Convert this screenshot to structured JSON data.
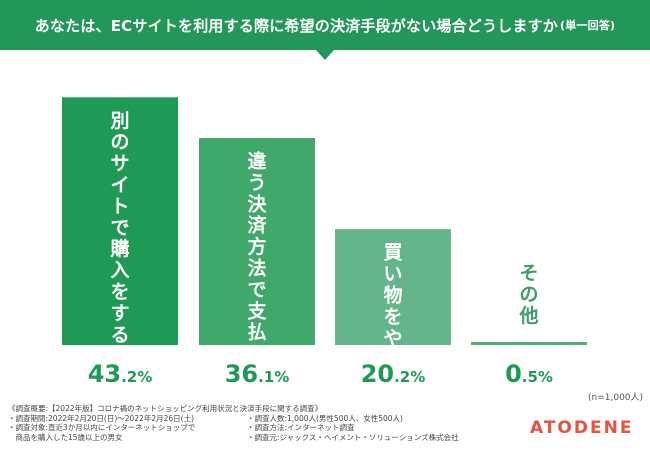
{
  "header": {
    "title": "あなたは、ECサイトを利用する際に希望の決済手段がない場合どうしますか",
    "subtitle": "(単一回答)"
  },
  "chart_data": {
    "type": "bar",
    "categories": [
      "別のサイトで購入をする",
      "違う決済方法で支払う",
      "買い物をやめる",
      "その他"
    ],
    "values": [
      43.2,
      36.1,
      20.2,
      0.5
    ],
    "value_labels": [
      {
        "int": "43",
        "dec": ".2%"
      },
      {
        "int": "36",
        "dec": ".1%"
      },
      {
        "int": "20",
        "dec": ".2%"
      },
      {
        "int": "0",
        "dec": ".5%"
      }
    ],
    "ylim": [
      0,
      45
    ],
    "colors": [
      "#1f9a55",
      "#3fa86a",
      "#64b589",
      "#4fae7a"
    ],
    "grid": false,
    "legend": "none"
  },
  "note": "(n=1,000人)",
  "survey": {
    "heading": "《調査概要:【2022年版】コロナ禍のネットショッピング利用状況と決済手段に関する調査》",
    "period": "・調査期間:2022年2月20日(日)〜2022年2月26日(土)",
    "target_line1": "・調査対象:直近3か月以内にインターネットショップで",
    "target_line2": "　商品を購入した15歳以上の男女",
    "respondents": "・調査人数:1,000人(男性500人、女性500人)",
    "method": "・調査方法:インターネット調査",
    "source": "・調査元:ジャックス・ヘイメント・ソリューションズ株式会社"
  },
  "logo": "ATODENE"
}
